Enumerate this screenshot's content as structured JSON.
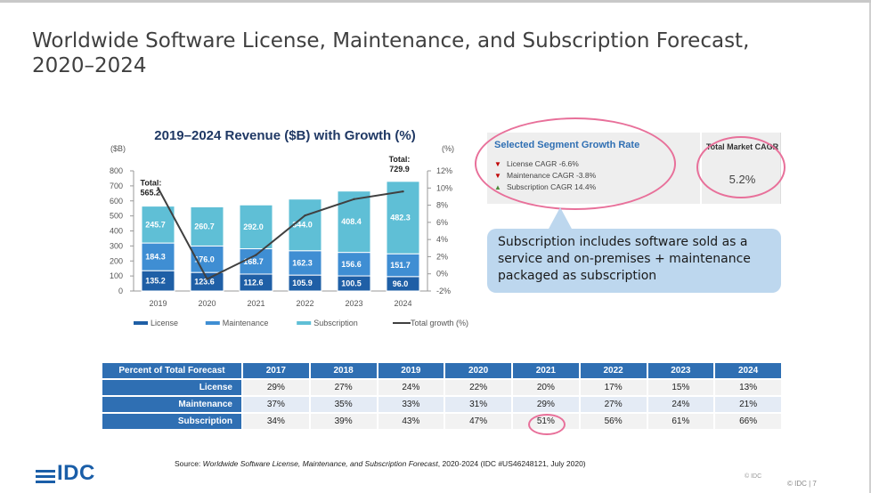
{
  "slide": {
    "title": "Worldwide Software License, Maintenance, and Subscription Forecast, 2020–2024"
  },
  "chart_data": {
    "type": "bar",
    "stacked": true,
    "title": "2019–2024 Revenue ($B) with Growth (%)",
    "ylabel": "($B)",
    "y2label": "(%)",
    "ylim": [
      0,
      800
    ],
    "y_ticks": [
      "800",
      "700",
      "600",
      "500",
      "400",
      "300",
      "200",
      "100",
      "0"
    ],
    "y2lim": [
      -2,
      12
    ],
    "y2_ticks": [
      "12%",
      "10%",
      "8%",
      "6%",
      "4%",
      "2%",
      "0%",
      "-2%"
    ],
    "categories": [
      "2019",
      "2020",
      "2021",
      "2022",
      "2023",
      "2024"
    ],
    "series": [
      {
        "name": "License",
        "color": "#1f5fa6",
        "values": [
          135.2,
          123.6,
          112.6,
          105.9,
          100.5,
          96.0
        ]
      },
      {
        "name": "Maintenance",
        "color": "#3f8ed3",
        "values": [
          184.3,
          176.0,
          168.7,
          162.3,
          156.6,
          151.7
        ]
      },
      {
        "name": "Subscription",
        "color": "#5fbfd6",
        "values": [
          245.7,
          260.7,
          292.0,
          344.0,
          408.4,
          482.3
        ]
      }
    ],
    "line_series": {
      "name": "Total growth (%)",
      "color": "#404040",
      "values": [
        10.0,
        -0.6,
        2.2,
        6.8,
        8.7,
        9.6
      ]
    },
    "annotations": [
      {
        "category": "2019",
        "label": "Total:",
        "value": "565.2"
      },
      {
        "category": "2024",
        "label": "Total:",
        "value": "729.9"
      }
    ],
    "legend_position": "bottom"
  },
  "segment_panel": {
    "title": "Selected Segment Growth Rate",
    "items": [
      {
        "direction": "down",
        "text": "License CAGR -6.6%"
      },
      {
        "direction": "down",
        "text": "Maintenance CAGR -3.8%"
      },
      {
        "direction": "up",
        "text": "Subscription CAGR 14.4%"
      }
    ],
    "cagr_title": "Total Market CAGR",
    "cagr_value": "5.2%"
  },
  "callout": {
    "text": "Subscription includes software sold as a service and on-premises + maintenance packaged as subscription"
  },
  "table": {
    "header": [
      "Percent of Total Forecast",
      "2017",
      "2018",
      "2019",
      "2020",
      "2021",
      "2022",
      "2023",
      "2024"
    ],
    "rows": [
      {
        "label": "License",
        "values": [
          "29%",
          "27%",
          "24%",
          "22%",
          "20%",
          "17%",
          "15%",
          "13%"
        ]
      },
      {
        "label": "Maintenance",
        "values": [
          "37%",
          "35%",
          "33%",
          "31%",
          "29%",
          "27%",
          "24%",
          "21%"
        ]
      },
      {
        "label": "Subscription",
        "values": [
          "34%",
          "39%",
          "43%",
          "47%",
          "51%",
          "56%",
          "61%",
          "66%"
        ]
      }
    ]
  },
  "footer": {
    "source_prefix": "Source: ",
    "source_title": "Worldwide Software License, Maintenance, and Subscription Forecast",
    "source_rest": ", 2020-2024 (IDC #US46248121, July 2020)",
    "logo_text": "IDC",
    "copyright_small": "© IDC",
    "page_ref": "© IDC  |   7"
  },
  "colors": {
    "accent": "#2f6fb3",
    "highlight": "#e8709a",
    "callout_bg": "#bdd7ee"
  }
}
